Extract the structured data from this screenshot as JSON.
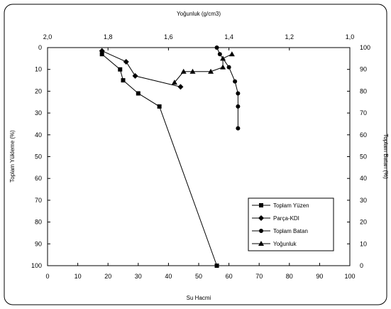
{
  "chart_data": {
    "type": "line",
    "axes": {
      "bottom": {
        "label": "Su Hacmi",
        "lim": [
          0,
          100
        ],
        "ticks": [
          "0",
          "10",
          "20",
          "30",
          "40",
          "50",
          "60",
          "70",
          "80",
          "90",
          "100"
        ]
      },
      "top": {
        "label": "Yoğunluk (g/cm3)",
        "lim": [
          2.0,
          1.0
        ],
        "ticks": [
          "2,0",
          "1,8",
          "1,6",
          "1,4",
          "1,2",
          "1,0"
        ]
      },
      "left": {
        "label": "Toplam Yükleme (%)",
        "lim": [
          0,
          100
        ],
        "inverted": true,
        "ticks": [
          "0",
          "10",
          "20",
          "30",
          "40",
          "50",
          "60",
          "70",
          "80",
          "90",
          "100"
        ]
      },
      "right": {
        "label": "Toplam Batan (%)",
        "lim": [
          0,
          100
        ],
        "ticks": [
          "100",
          "90",
          "80",
          "70",
          "60",
          "50",
          "40",
          "30",
          "20",
          "10",
          "0"
        ]
      }
    },
    "grid": false,
    "legend_position": "bottom-right",
    "series": [
      {
        "name": "Toplam Yüzen",
        "marker": "square",
        "x_axis": "bottom",
        "y_axis": "left",
        "points": [
          [
            18,
            3
          ],
          [
            24,
            10
          ],
          [
            25,
            15
          ],
          [
            30,
            21
          ],
          [
            37,
            27
          ],
          [
            56,
            100
          ]
        ]
      },
      {
        "name": "Parça-KDI",
        "marker": "diamond",
        "x_axis": "bottom",
        "y_axis": "left",
        "points": [
          [
            18,
            1.5
          ],
          [
            26,
            6.5
          ],
          [
            29,
            13
          ],
          [
            44,
            18
          ]
        ]
      },
      {
        "name": "Toplam Batan",
        "marker": "circle",
        "x_axis": "bottom",
        "y_axis": "right",
        "points": [
          [
            56,
            100
          ],
          [
            57,
            97
          ],
          [
            60,
            91
          ],
          [
            62,
            84.5
          ],
          [
            63,
            79
          ],
          [
            63,
            73
          ],
          [
            63,
            63
          ]
        ]
      },
      {
        "name": "Yoğunluk",
        "marker": "triangle",
        "x_axis": "top",
        "y_axis": "left",
        "points": [
          [
            1.58,
            16
          ],
          [
            1.55,
            11
          ],
          [
            1.52,
            11
          ],
          [
            1.46,
            11
          ],
          [
            1.42,
            9
          ],
          [
            1.42,
            5
          ],
          [
            1.39,
            3
          ]
        ]
      }
    ]
  }
}
